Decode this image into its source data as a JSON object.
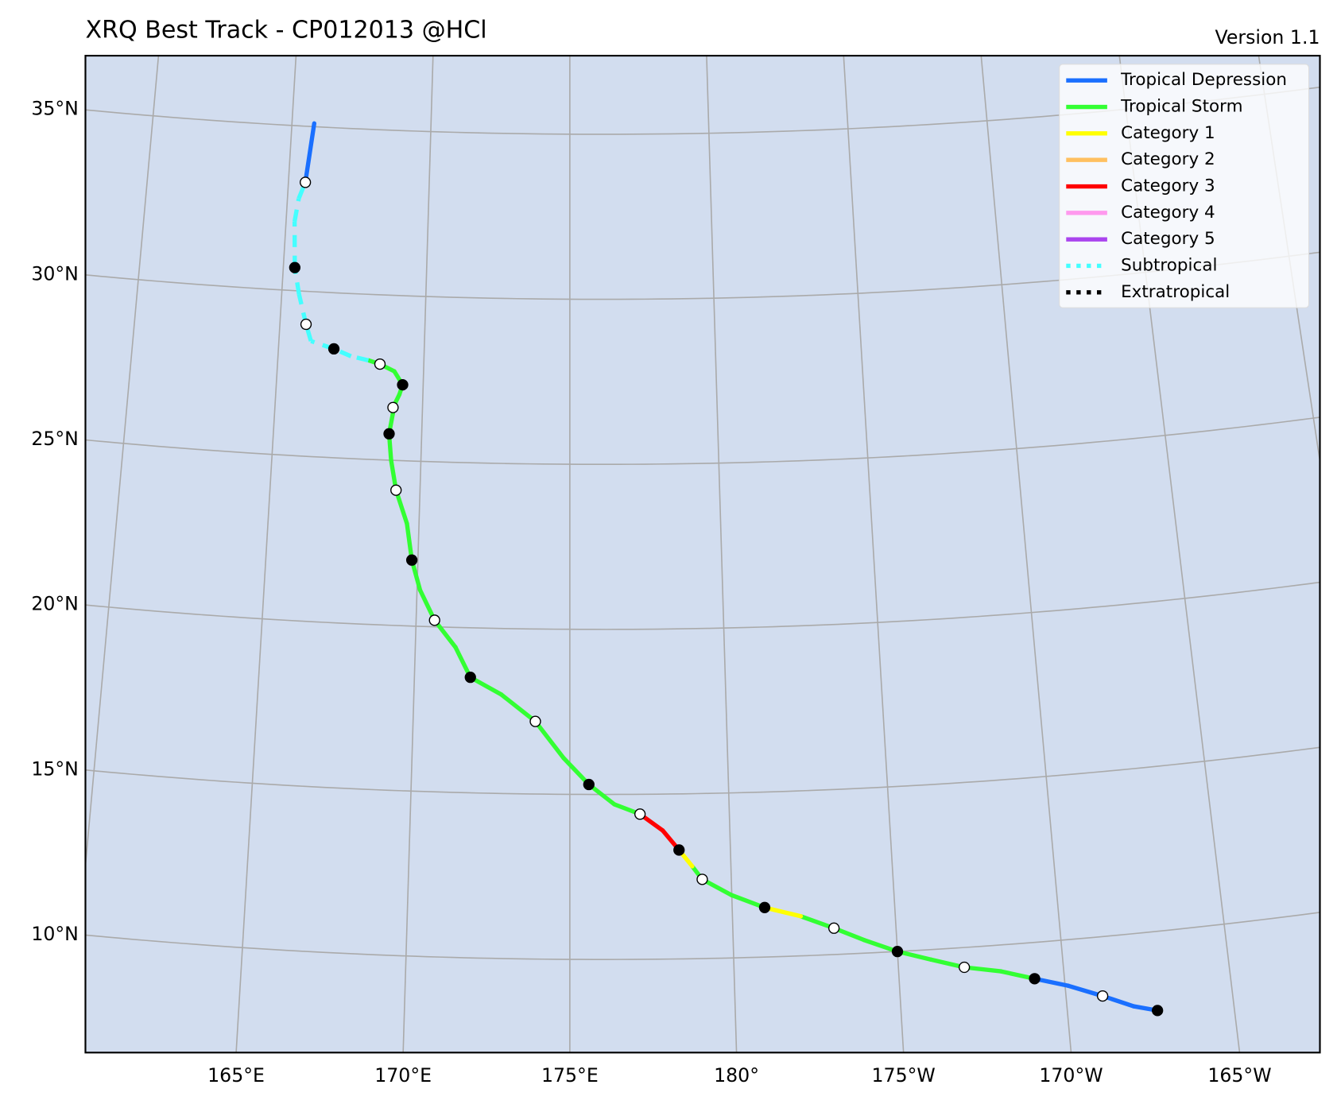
{
  "title": "XRQ Best Track - CP012013  @HCl",
  "version": "Version 1.1",
  "legend": [
    {
      "name": "Tropical Depression",
      "color": "#1a6fff",
      "style": "solid"
    },
    {
      "name": "Tropical Storm",
      "color": "#33ff33",
      "style": "solid"
    },
    {
      "name": "Category 1",
      "color": "#ffff00",
      "style": "solid"
    },
    {
      "name": "Category 2",
      "color": "#ffc060",
      "style": "solid"
    },
    {
      "name": "Category 3",
      "color": "#ff0000",
      "style": "solid"
    },
    {
      "name": "Category 4",
      "color": "#ff99ee",
      "style": "solid"
    },
    {
      "name": "Category 5",
      "color": "#aa44ee",
      "style": "solid"
    },
    {
      "name": "Subtropical",
      "color": "#44ffff",
      "style": "dotted"
    },
    {
      "name": "Extratropical",
      "color": "#000000",
      "style": "dotted"
    }
  ],
  "map": {
    "background": "#d2ddef",
    "grid_color": "#aaaaaa",
    "lat_grid": [
      {
        "value": 10,
        "label": "10°N"
      },
      {
        "value": 15,
        "label": "15°N"
      },
      {
        "value": 20,
        "label": "20°N"
      },
      {
        "value": 25,
        "label": "25°N"
      },
      {
        "value": 30,
        "label": "30°N"
      },
      {
        "value": 35,
        "label": "35°N"
      }
    ],
    "lon_grid": [
      {
        "value": 165,
        "label": "165°E"
      },
      {
        "value": 170,
        "label": "170°E"
      },
      {
        "value": 175,
        "label": "175°E"
      },
      {
        "value": 180,
        "label": "180°"
      },
      {
        "value": 185,
        "label": "175°W"
      },
      {
        "value": 190,
        "label": "170°W"
      },
      {
        "value": 195,
        "label": "165°W"
      }
    ],
    "lon_grid_extra": [
      160,
      200
    ]
  },
  "track": {
    "lon": [
      192.7,
      192.0,
      191.1,
      190.1,
      189.1,
      188.1,
      187.0,
      186.0,
      185.0,
      184.0,
      183.1,
      182.1,
      181.0,
      180.0,
      179.1,
      178.8,
      178.4,
      177.9,
      177.2,
      176.4,
      175.6,
      174.8,
      173.9,
      172.8,
      171.8,
      171.3,
      170.6,
      170.1,
      169.8,
      169.6,
      169.2,
      169.0,
      168.9,
      169.0,
      169.0,
      169.2,
      169.3,
      169.0,
      168.5,
      168.1,
      167.5,
      166.9,
      166.1,
      165.9,
      165.6,
      165.4,
      165.3,
      165.4,
      165.6,
      165.8
    ],
    "lat": [
      7.6,
      7.8,
      8.2,
      8.6,
      8.9,
      9.2,
      9.4,
      9.7,
      10.0,
      10.4,
      10.8,
      11.2,
      11.5,
      11.9,
      12.4,
      12.8,
      13.3,
      13.9,
      14.4,
      14.7,
      15.3,
      16.1,
      17.2,
      18.0,
      18.5,
      19.4,
      20.2,
      21.1,
      22.0,
      23.1,
      24.1,
      25.0,
      25.8,
      26.4,
      26.6,
      27.0,
      27.3,
      27.7,
      27.9,
      28.0,
      28.1,
      28.3,
      28.5,
      29.0,
      29.9,
      30.7,
      32.1,
      32.8,
      33.3,
      35.1
    ],
    "segment_category": [
      0,
      0,
      0,
      0,
      1,
      1,
      1,
      1,
      1,
      1,
      1,
      2,
      1,
      1,
      1,
      2,
      4,
      4,
      1,
      1,
      1,
      1,
      1,
      1,
      1,
      1,
      1,
      1,
      1,
      1,
      1,
      1,
      1,
      1,
      1,
      1,
      1,
      1,
      1,
      7,
      7,
      7,
      7,
      7,
      7,
      7,
      7,
      7,
      0,
      null
    ],
    "marker_fill": [
      "#000000",
      null,
      "#ffffff",
      null,
      "#000000",
      null,
      "#ffffff",
      null,
      "#000000",
      null,
      "#ffffff",
      null,
      "#000000",
      null,
      "#ffffff",
      null,
      "#000000",
      null,
      "#ffffff",
      null,
      "#000000",
      null,
      "#ffffff",
      null,
      "#000000",
      null,
      "#ffffff",
      null,
      "#000000",
      null,
      "#ffffff",
      null,
      "#000000",
      null,
      "#ffffff",
      null,
      "#000000",
      null,
      "#ffffff",
      null,
      null,
      "#000000",
      null,
      "#ffffff",
      null,
      "#000000",
      null,
      null,
      "#ffffff",
      null
    ]
  }
}
